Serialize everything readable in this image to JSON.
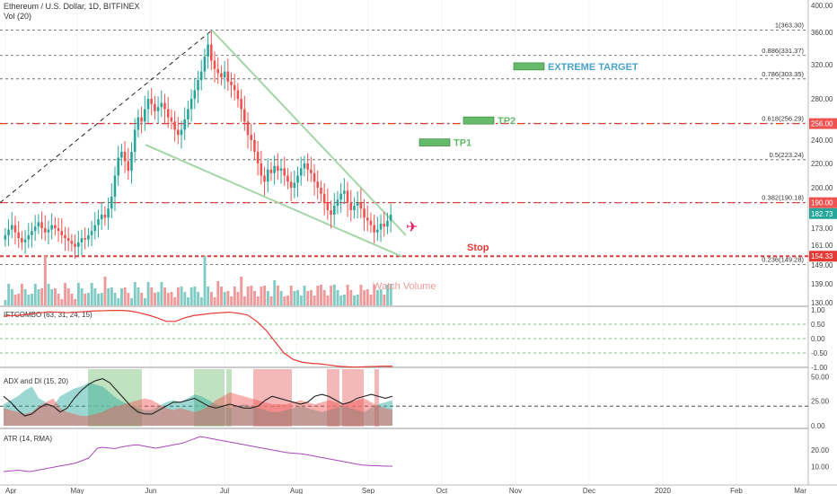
{
  "header": {
    "symbol_line": "Ethereum / U.S. Dollar, 1D, BITFINEX",
    "volume_label": "Vol (20)"
  },
  "colors": {
    "up": "#26a69a",
    "down": "#ef5350",
    "wedge": "#a5d6a7",
    "fib": "#555555",
    "stop": "#e53935",
    "tp": "#66bb6a",
    "extreme": "#4aa3c9",
    "atr": "#ab47bc",
    "ift": "#e53935"
  },
  "chart_data": [
    {
      "type": "candlestick",
      "panel": "price",
      "y_axis": [
        "400.00",
        "360.00",
        "320.00",
        "280.00",
        "240.00",
        "220.00",
        "200.00",
        "173.00",
        "161.00",
        "149.00",
        "139.00",
        "130.00"
      ],
      "x_axis": [
        "Apr",
        "May",
        "Jun",
        "Jul",
        "Aug",
        "Sep",
        "Oct",
        "Nov",
        "Dec",
        "2020",
        "Feb",
        "Mar"
      ],
      "fib_levels": [
        {
          "label": "1(363.30)",
          "value": 363.3
        },
        {
          "label": "0.886(331.37)",
          "value": 331.37
        },
        {
          "label": "0.786(303.35)",
          "value": 303.35
        },
        {
          "label": "0.618(256.29)",
          "value": 256.29
        },
        {
          "label": "0.5(223.24)",
          "value": 223.24
        },
        {
          "label": "0.382(190.18)",
          "value": 190.18
        },
        {
          "label": "0.236(149.28)",
          "value": 149.28
        }
      ],
      "price_tags": [
        {
          "label": "256.00",
          "value": 256.0,
          "color": "#ef5350"
        },
        {
          "label": "190.00",
          "value": 190.0,
          "color": "#ef5350"
        },
        {
          "label": "182.73",
          "value": 182.73,
          "color": "#26a69a"
        },
        {
          "label": "154.33",
          "value": 154.33,
          "color": "#e53935"
        }
      ],
      "targets": [
        {
          "label": "EXTREME TARGET",
          "value": 318.0
        },
        {
          "label": "TP2",
          "value": 259.0
        },
        {
          "label": "TP1",
          "value": 238.0
        }
      ],
      "stop": {
        "label": "Stop",
        "value": 154.33
      },
      "volume_annotation": "Watch Volume",
      "closes": [
        168,
        172,
        175,
        170,
        166,
        163,
        165,
        168,
        171,
        174,
        177,
        173,
        170,
        172,
        175,
        173,
        171,
        168,
        166,
        164,
        162,
        160,
        163,
        166,
        165,
        168,
        171,
        175,
        179,
        182,
        180,
        186,
        194,
        210,
        225,
        230,
        222,
        214,
        230,
        250,
        262,
        258,
        270,
        280,
        275,
        268,
        272,
        276,
        270,
        262,
        258,
        250,
        245,
        250,
        260,
        270,
        280,
        290,
        302,
        312,
        330,
        345,
        325,
        315,
        310,
        305,
        312,
        300,
        296,
        290,
        280,
        270,
        258,
        245,
        240,
        230,
        220,
        210,
        205,
        215,
        212,
        218,
        214,
        216,
        210,
        205,
        200,
        204,
        210,
        216,
        220,
        215,
        212,
        205,
        200,
        196,
        190,
        185,
        182,
        188,
        192,
        196,
        198,
        190,
        185,
        188,
        190,
        186,
        180,
        178,
        175,
        170,
        172,
        176,
        174,
        178,
        182
      ]
    },
    {
      "type": "line",
      "panel": "IFTCOMBO",
      "title": "IFTCOMBO (63, 31, 24, 15)",
      "y_axis": [
        "1.00",
        "0.50",
        "0.00",
        "-0.50",
        "-1.00"
      ],
      "values": [
        0.78,
        0.8,
        0.82,
        0.86,
        0.9,
        0.93,
        0.92,
        0.9,
        0.92,
        0.94,
        0.96,
        0.97,
        0.98,
        0.98,
        0.96,
        0.9,
        0.82,
        0.72,
        0.6,
        0.6,
        0.72,
        0.8,
        0.84,
        0.88,
        0.9,
        0.92,
        0.88,
        0.82,
        0.6,
        0.3,
        -0.1,
        -0.5,
        -0.72,
        -0.82,
        -0.86,
        -0.88,
        -0.92,
        -0.96,
        -0.98,
        -0.99,
        -0.98,
        -0.97,
        -0.96,
        -0.96
      ]
    },
    {
      "type": "area",
      "panel": "ADX",
      "title": "ADX and DI (15, 20)",
      "y_axis": [
        "50.00",
        "25.00",
        "0.00"
      ],
      "reference_value": 20,
      "adx": [
        30,
        24,
        16,
        10,
        12,
        18,
        22,
        20,
        14,
        18,
        28,
        36,
        42,
        46,
        48,
        44,
        36,
        28,
        20,
        14,
        12,
        12,
        16,
        20,
        24,
        24,
        26,
        28,
        24,
        20,
        18,
        20,
        22,
        20,
        18,
        18,
        20,
        26,
        30,
        28,
        26,
        24,
        22,
        24,
        30,
        32,
        30,
        26,
        22,
        24,
        28,
        30,
        32,
        30,
        28,
        30
      ],
      "plus_di": [
        22,
        26,
        30,
        36,
        40,
        28,
        24,
        20,
        30,
        34,
        38,
        40,
        44,
        42,
        40,
        34,
        28,
        24,
        20,
        18,
        16,
        16,
        20,
        24,
        26,
        24,
        28,
        32,
        30,
        26,
        22,
        20,
        18,
        20,
        22,
        20,
        18,
        16,
        14,
        14,
        16,
        18,
        20,
        18,
        16,
        14,
        16,
        18,
        20,
        18,
        16,
        14,
        18,
        22,
        24,
        26
      ],
      "minus_di": [
        18,
        16,
        14,
        12,
        14,
        20,
        24,
        28,
        18,
        14,
        12,
        10,
        10,
        12,
        14,
        18,
        20,
        22,
        24,
        26,
        28,
        26,
        22,
        18,
        16,
        18,
        16,
        14,
        16,
        20,
        26,
        30,
        34,
        32,
        30,
        28,
        26,
        24,
        22,
        22,
        22,
        24,
        26,
        24,
        22,
        24,
        26,
        24,
        22,
        24,
        26,
        28,
        24,
        20,
        18,
        16
      ]
    },
    {
      "type": "line",
      "panel": "ATR",
      "title": "ATR (14, RMA)",
      "y_axis": [
        "20.00",
        "10.00"
      ],
      "values": [
        7,
        7.2,
        7.5,
        7.8,
        7.6,
        7.2,
        7,
        7.5,
        8,
        8.5,
        9,
        9.5,
        10,
        10.5,
        11,
        11.5,
        12,
        13,
        14,
        15,
        18,
        21,
        21.5,
        21.3,
        21,
        20.8,
        21.5,
        22,
        22.5,
        22.8,
        23,
        22.5,
        22,
        21.5,
        21,
        21.5,
        22,
        22.5,
        23,
        23.5,
        24,
        25,
        26,
        27,
        28,
        27.5,
        27,
        26.5,
        26,
        25.5,
        25,
        24.5,
        24,
        23.5,
        23,
        22.5,
        22,
        21.5,
        21,
        20.5,
        20,
        19.5,
        19,
        18.5,
        18.2,
        18,
        17.8,
        17.5,
        17,
        16.5,
        16,
        15.5,
        15,
        14.5,
        14,
        13.5,
        13,
        12.5,
        12,
        11.5,
        11,
        10.8,
        10.6,
        10.5,
        10.4,
        10.3,
        10.2,
        10.2
      ]
    }
  ]
}
